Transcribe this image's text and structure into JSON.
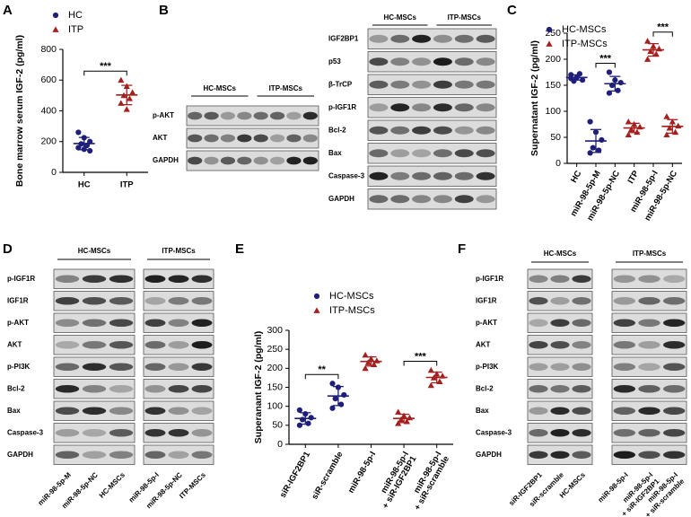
{
  "panels": [
    "A",
    "B",
    "C",
    "D",
    "E",
    "F"
  ],
  "chart_data": [
    {
      "type": "scatter",
      "ylabel": "Bone marrow serum IGF-2 (pg/ml)",
      "categories": [
        "HC",
        "ITP"
      ],
      "ylim": [
        0,
        800
      ],
      "yticks": [
        0,
        200,
        400,
        600,
        800
      ],
      "series": [
        {
          "name": "HC",
          "color": "#1f1f7a",
          "marker": "circle",
          "values": [
            [
              260,
              225,
              200,
              185,
              175,
              160,
              150,
              140
            ],
            null
          ],
          "means": [
            187,
            null
          ],
          "sd": [
            40,
            null
          ]
        },
        {
          "name": "ITP",
          "color": "#a3201f",
          "marker": "triangle",
          "values": [
            null,
            [
              600,
              560,
              520,
              500,
              480,
              450,
              410
            ]
          ],
          "means": [
            null,
            503
          ],
          "sd": [
            null,
            63
          ]
        }
      ],
      "significance": [
        {
          "label": "***",
          "from": 0,
          "to": 1
        }
      ]
    },
    {
      "type": "scatter",
      "ylabel": "Supernatant IGF-2 (pg/ml)",
      "categories": [
        "HC",
        "miR-98-5p-M",
        "miR-98-5p-NC",
        "ITP",
        "miR-98-5p-I",
        "miR-98-5p-NC"
      ],
      "ylim": [
        0,
        250
      ],
      "yticks": [
        0,
        50,
        100,
        150,
        200,
        250
      ],
      "series": [
        {
          "name": "HC-MSCs",
          "color": "#1f1f7a",
          "marker": "circle",
          "values": [
            [
              170,
              165,
              160,
              158,
              172,
              163
            ],
            [
              80,
              60,
              45,
              30,
              25,
              20
            ],
            [
              175,
              160,
              155,
              150,
              140,
              135
            ],
            null,
            null,
            null
          ],
          "means": [
            165,
            43,
            153,
            null,
            null,
            null
          ],
          "sd": [
            5,
            22,
            14,
            null,
            null,
            null
          ]
        },
        {
          "name": "ITP-MSCs",
          "color": "#a3201f",
          "marker": "triangle",
          "values": [
            null,
            null,
            null,
            [
              80,
              75,
              70,
              65,
              60,
              55
            ],
            [
              235,
              225,
              220,
              215,
              210,
              200
            ],
            [
              90,
              80,
              72,
              68,
              60,
              55
            ]
          ],
          "means": [
            null,
            null,
            null,
            68,
            218,
            71
          ],
          "sd": [
            null,
            null,
            null,
            9,
            12,
            13
          ]
        }
      ],
      "significance": [
        {
          "label": "***",
          "from": 1,
          "to": 2
        },
        {
          "label": "***",
          "from": 4,
          "to": 5
        }
      ]
    },
    {
      "type": "scatter",
      "ylabel": "Superanant IGF-2 (pg/ml)",
      "categories": [
        "siR-IGF2BP1",
        "siR-scramble",
        "miR-98-5p-I",
        [
          "miR-98-5p-I",
          "+ siR-IGF2BP1"
        ],
        [
          "miR-98-5p-I",
          "+ siR-scramble"
        ]
      ],
      "ylim": [
        0,
        300
      ],
      "yticks": [
        0,
        50,
        100,
        150,
        200,
        250,
        300
      ],
      "series": [
        {
          "name": "HC-MSCs",
          "color": "#1f1f7a",
          "marker": "circle",
          "values": [
            [
              90,
              80,
              70,
              65,
              55,
              50
            ],
            [
              160,
              150,
              130,
              120,
              105,
              95
            ],
            null,
            null,
            null
          ],
          "means": [
            68,
            127,
            null,
            null,
            null
          ],
          "sd": [
            15,
            25,
            null,
            null,
            null
          ]
        },
        {
          "name": "ITP-MSCs",
          "color": "#a3201f",
          "marker": "triangle",
          "values": [
            null,
            null,
            [
              235,
              225,
              220,
              215,
              210,
              200
            ],
            [
              85,
              75,
              70,
              65,
              60,
              55
            ],
            [
              195,
              185,
              180,
              175,
              165,
              155
            ]
          ],
          "means": [
            null,
            null,
            218,
            68,
            176
          ],
          "sd": [
            null,
            null,
            12,
            11,
            14
          ]
        }
      ],
      "significance": [
        {
          "label": "**",
          "from": 0,
          "to": 1
        },
        {
          "label": "***",
          "from": 3,
          "to": 4
        }
      ]
    }
  ],
  "blots": [
    {
      "groups": [
        "HC-MSCs",
        "ITP-MSCs"
      ],
      "rows": [
        "p-AKT",
        "AKT",
        "GAPDH"
      ]
    },
    {
      "groups": [
        "HC-MSCs",
        "ITP-MSCs"
      ],
      "rows": [
        "IGF2BP1",
        "p53",
        "β-TrCP",
        "p-IGF1R",
        "Bcl-2",
        "Bax",
        "Caspase-3",
        "GAPDH"
      ]
    },
    {
      "rows": [
        "p-IGF1R",
        "IGF1R",
        "p-AKT",
        "AKT",
        "p-PI3K",
        "Bcl-2",
        "Bax",
        "Caspase-3",
        "GAPDH"
      ],
      "groups": [
        {
          "name": "HC-MSCs",
          "lanes": [
            "miR-98-5p-M",
            "miR-98-5p-NC",
            "HC-MSCs"
          ]
        },
        {
          "name": "ITP-MSCs",
          "lanes": [
            "miR-98-5p-I",
            "miR-98-5p-NC",
            "ITP-MSCs"
          ]
        }
      ]
    },
    {
      "rows": [
        "p-IGF1R",
        "IGF1R",
        "p-AKT",
        "AKT",
        "p-PI3K",
        "Bcl-2",
        "Bax",
        "Caspase-3",
        "GAPDH"
      ],
      "groups": [
        {
          "name": "HC-MSCs",
          "lanes": [
            "siR-IGF2BP1",
            "siR-scramble",
            "HC-MSCs"
          ]
        },
        {
          "name": "ITP-MSCs",
          "lanes": [
            "miR-98-5p-I",
            [
              "miR-98-5p-I",
              "+ siR-IGF2BP1"
            ],
            [
              "miR-98-5p-I",
              "+ siR-scramble"
            ]
          ]
        }
      ]
    }
  ]
}
